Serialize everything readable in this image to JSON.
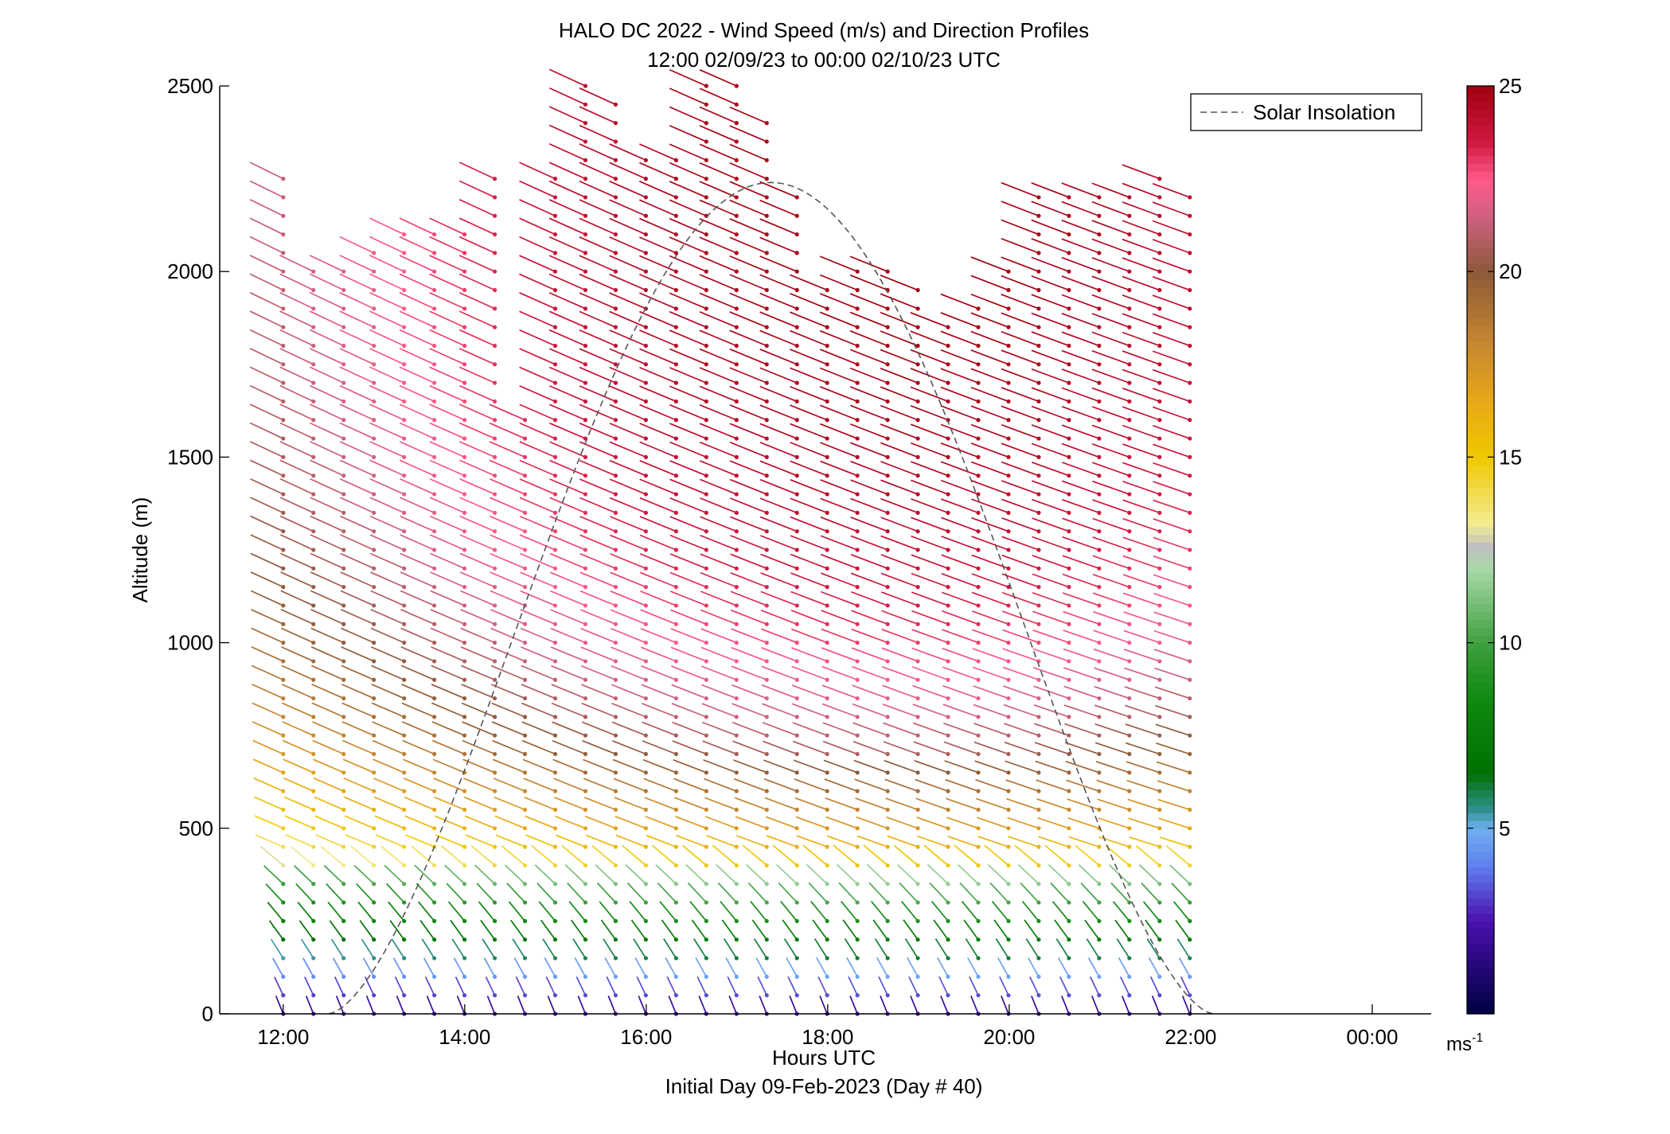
{
  "chart_data": {
    "type": "wind-barb-profile",
    "title": "HALO DC 2022 - Wind Speed (m/s) and Direction Profiles",
    "subtitle": "12:00 02/09/23 to 00:00 02/10/23  UTC",
    "xlabel": "Hours UTC",
    "xlabel2": "Initial Day 09-Feb-2023 (Day # 40)",
    "ylabel": "Altitude (m)",
    "colorbar_unit_base": "ms",
    "colorbar_unit_exp": "-1",
    "x_ticks": [
      "12:00",
      "14:00",
      "16:00",
      "18:00",
      "20:00",
      "22:00",
      "00:00"
    ],
    "x_tick_hours": [
      12,
      14,
      16,
      18,
      20,
      22,
      24
    ],
    "xlim": [
      11.3,
      24.65
    ],
    "y_ticks": [
      "0",
      "500",
      "1000",
      "1500",
      "2000",
      "2500"
    ],
    "y_tick_values": [
      0,
      500,
      1000,
      1500,
      2000,
      2500
    ],
    "ylim": [
      0,
      2500
    ],
    "colorbar_ticks": [
      "5",
      "10",
      "15",
      "20",
      "25"
    ],
    "colorbar_tick_values": [
      5,
      10,
      15,
      20,
      25
    ],
    "colorbar_range": [
      0,
      25
    ],
    "colormap_stops": [
      [
        0,
        "#000040"
      ],
      [
        2.5,
        "#4a10b0"
      ],
      [
        4,
        "#6080f0"
      ],
      [
        5,
        "#70b0f0"
      ],
      [
        5.5,
        "#309090"
      ],
      [
        6.5,
        "#007000"
      ],
      [
        8.5,
        "#108a10"
      ],
      [
        10,
        "#40a040"
      ],
      [
        12,
        "#a8d8a8"
      ],
      [
        12.6,
        "#c0c0c0"
      ],
      [
        13.2,
        "#f4ec90"
      ],
      [
        15,
        "#f0c800"
      ],
      [
        16.5,
        "#e8a818"
      ],
      [
        18,
        "#c88830"
      ],
      [
        20,
        "#8c5a3a"
      ],
      [
        21.5,
        "#d06080"
      ],
      [
        22.5,
        "#ff5a8a"
      ],
      [
        23.5,
        "#d01840"
      ],
      [
        25,
        "#a00010"
      ]
    ],
    "legend": {
      "label": "Solar Insolation",
      "placement": "top-right",
      "line_style": "dashed",
      "color": "#555555"
    },
    "solar_insolation": {
      "rise_hour": 12.5,
      "set_hour": 22.25,
      "peak_altitude": 2240
    },
    "profiles": {
      "start_hour": 12.0,
      "step_hours": 0.333,
      "count": 31,
      "altitude_step": 50,
      "max_altitude": [
        2280,
        2000,
        2000,
        2080,
        2130,
        2130,
        2130,
        2280,
        1600,
        2270,
        2500,
        2450,
        2320,
        2300,
        2500,
        2500,
        2410,
        2200,
        1960,
        2000,
        2040,
        1960,
        1880,
        1900,
        2000,
        2200,
        2240,
        2200,
        2200,
        2250,
        2220
      ]
    }
  }
}
